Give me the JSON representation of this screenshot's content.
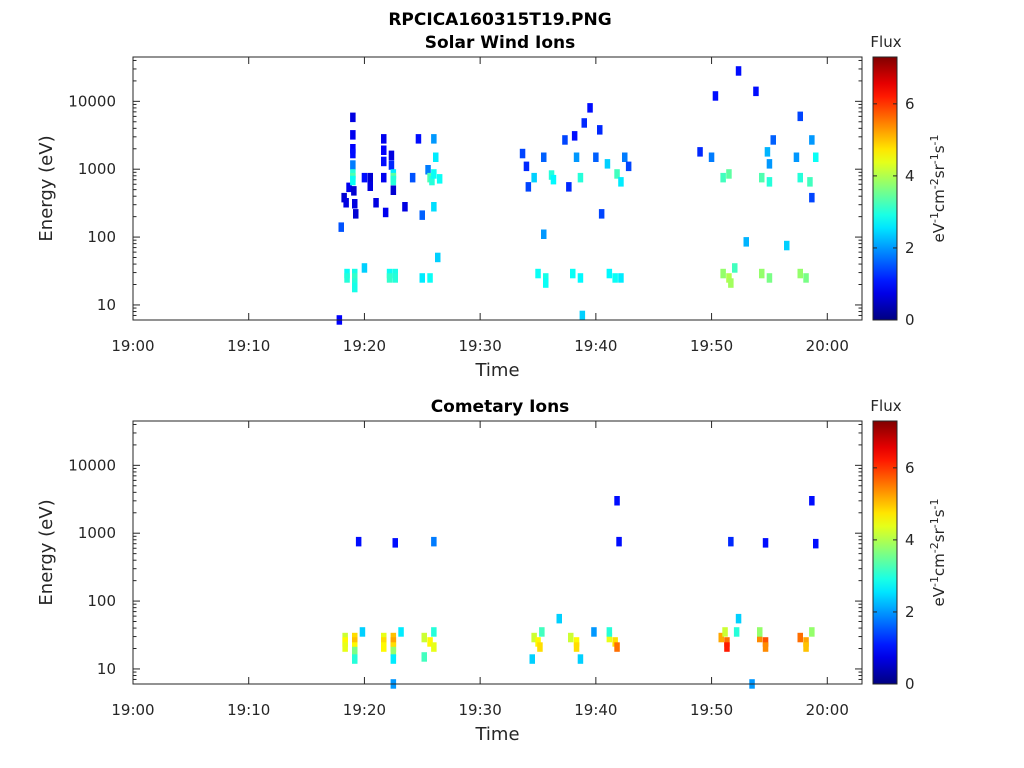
{
  "figure": {
    "main_title": "RPCICA160315T19.PNG"
  },
  "chart_data": [
    {
      "type": "heatmap",
      "title": "Solar Wind Ions",
      "xlabel": "Time",
      "ylabel": "Energy (eV)",
      "y_scale": "log",
      "ylim": [
        6,
        45000
      ],
      "xlim": [
        "19:00",
        "20:03"
      ],
      "x_ticks": [
        "19:00",
        "19:10",
        "19:20",
        "19:30",
        "19:40",
        "19:50",
        "20:00"
      ],
      "y_ticks": [
        "10",
        "100",
        "1000",
        "10000"
      ],
      "colorbar": {
        "title": "Flux",
        "label": "eV-1cm-2sr-1s-1",
        "ticks": [
          "0",
          "2",
          "4",
          "6"
        ],
        "range": [
          0,
          7.3
        ],
        "colormap": "jet"
      },
      "cells": [
        [
          "19:17:50",
          6,
          0.9
        ],
        [
          "19:18:00",
          140,
          1.5
        ],
        [
          "19:18:15",
          380,
          0.6
        ],
        [
          "19:18:25",
          320,
          0.7
        ],
        [
          "19:18:40",
          540,
          0.8
        ],
        [
          "19:19:00",
          5800,
          0.7
        ],
        [
          "19:19:00",
          3200,
          0.8
        ],
        [
          "19:19:00",
          2000,
          0.9
        ],
        [
          "19:19:00",
          1700,
          1.0
        ],
        [
          "19:19:00",
          1150,
          1.8
        ],
        [
          "19:19:00",
          850,
          3.0
        ],
        [
          "19:19:00",
          750,
          3.3
        ],
        [
          "19:19:00",
          680,
          2.8
        ],
        [
          "19:19:05",
          480,
          0.6
        ],
        [
          "19:19:10",
          310,
          0.7
        ],
        [
          "19:19:15",
          220,
          0.6
        ],
        [
          "19:18:30",
          29,
          2.8
        ],
        [
          "19:19:10",
          29,
          2.9
        ],
        [
          "19:18:30",
          25,
          3.0
        ],
        [
          "19:19:10",
          25,
          3.1
        ],
        [
          "19:19:10",
          21,
          3.0
        ],
        [
          "19:19:10",
          18,
          2.9
        ],
        [
          "19:20:00",
          750,
          1.0
        ],
        [
          "19:20:00",
          35,
          2.4
        ],
        [
          "19:20:30",
          750,
          0.6
        ],
        [
          "19:20:30",
          560,
          0.7
        ],
        [
          "19:21:00",
          320,
          0.7
        ],
        [
          "19:21:40",
          2800,
          0.8
        ],
        [
          "19:21:40",
          1900,
          0.9
        ],
        [
          "19:21:40",
          1300,
          1.0
        ],
        [
          "19:21:40",
          750,
          0.8
        ],
        [
          "19:21:50",
          230,
          0.8
        ],
        [
          "19:22:20",
          1600,
          0.7
        ],
        [
          "19:22:20",
          1150,
          1.2
        ],
        [
          "19:22:30",
          850,
          2.6
        ],
        [
          "19:22:30",
          750,
          3.4
        ],
        [
          "19:22:30",
          680,
          3.0
        ],
        [
          "19:22:30",
          490,
          0.6
        ],
        [
          "19:22:10",
          29,
          2.8
        ],
        [
          "19:22:40",
          29,
          2.9
        ],
        [
          "19:22:10",
          25,
          3.1
        ],
        [
          "19:22:40",
          25,
          3.0
        ],
        [
          "19:23:30",
          280,
          0.7
        ],
        [
          "19:24:10",
          750,
          1.5
        ],
        [
          "19:24:40",
          2800,
          1.0
        ],
        [
          "19:25:00",
          210,
          1.6
        ],
        [
          "19:25:30",
          980,
          1.8
        ],
        [
          "19:25:40",
          750,
          3.3
        ],
        [
          "19:25:50",
          680,
          3.0
        ],
        [
          "19:26:00",
          850,
          2.8
        ],
        [
          "19:26:10",
          1500,
          2.6
        ],
        [
          "19:26:30",
          720,
          2.8
        ],
        [
          "19:26:00",
          2800,
          2.0
        ],
        [
          "19:25:00",
          25,
          2.6
        ],
        [
          "19:25:40",
          25,
          2.8
        ],
        [
          "19:26:20",
          50,
          2.4
        ],
        [
          "19:26:00",
          280,
          2.5
        ],
        [
          "19:33:40",
          1700,
          1.4
        ],
        [
          "19:34:00",
          1100,
          1.2
        ],
        [
          "19:34:10",
          550,
          1.4
        ],
        [
          "19:34:40",
          750,
          2.4
        ],
        [
          "19:35:30",
          1500,
          1.6
        ],
        [
          "19:35:30",
          110,
          2.0
        ],
        [
          "19:35:00",
          29,
          2.8
        ],
        [
          "19:35:40",
          25,
          2.9
        ],
        [
          "19:35:40",
          21,
          2.8
        ],
        [
          "19:36:10",
          820,
          3.0
        ],
        [
          "19:36:20",
          700,
          2.7
        ],
        [
          "19:37:20",
          2700,
          1.4
        ],
        [
          "19:37:40",
          550,
          1.2
        ],
        [
          "19:38:10",
          3100,
          1.0
        ],
        [
          "19:38:20",
          1500,
          2.0
        ],
        [
          "19:38:40",
          750,
          3.0
        ],
        [
          "19:39:00",
          4800,
          1.2
        ],
        [
          "19:39:30",
          8000,
          1.0
        ],
        [
          "19:38:00",
          29,
          2.8
        ],
        [
          "19:38:40",
          25,
          2.7
        ],
        [
          "19:38:50",
          7,
          2.4
        ],
        [
          "19:40:00",
          1500,
          1.6
        ],
        [
          "19:40:20",
          3800,
          1.2
        ],
        [
          "19:40:30",
          220,
          1.4
        ],
        [
          "19:41:00",
          1200,
          2.4
        ],
        [
          "19:41:50",
          850,
          3.2
        ],
        [
          "19:42:10",
          650,
          2.6
        ],
        [
          "19:41:10",
          29,
          2.7
        ],
        [
          "19:41:40",
          25,
          2.8
        ],
        [
          "19:42:10",
          25,
          2.6
        ],
        [
          "19:42:30",
          1500,
          1.8
        ],
        [
          "19:42:50",
          1100,
          1.4
        ],
        [
          "19:49:00",
          1800,
          1.2
        ],
        [
          "19:50:00",
          1500,
          1.8
        ],
        [
          "19:50:20",
          12000,
          1.0
        ],
        [
          "19:51:00",
          750,
          3.2
        ],
        [
          "19:51:30",
          850,
          3.4
        ],
        [
          "19:52:20",
          28000,
          1.0
        ],
        [
          "19:51:00",
          29,
          3.8
        ],
        [
          "19:51:30",
          25,
          4.0
        ],
        [
          "19:51:40",
          21,
          3.9
        ],
        [
          "19:52:00",
          35,
          3.2
        ],
        [
          "19:53:00",
          85,
          2.2
        ],
        [
          "19:53:50",
          14000,
          1.0
        ],
        [
          "19:54:20",
          750,
          3.3
        ],
        [
          "19:54:50",
          1800,
          2.2
        ],
        [
          "19:55:00",
          1200,
          2.0
        ],
        [
          "19:55:00",
          650,
          3.0
        ],
        [
          "19:54:20",
          29,
          3.8
        ],
        [
          "19:55:00",
          25,
          3.6
        ],
        [
          "19:55:20",
          2700,
          1.6
        ],
        [
          "19:56:30",
          75,
          2.4
        ],
        [
          "19:57:20",
          1500,
          2.0
        ],
        [
          "19:57:40",
          6000,
          1.4
        ],
        [
          "19:57:40",
          750,
          3.0
        ],
        [
          "19:58:30",
          650,
          3.2
        ],
        [
          "19:58:40",
          2700,
          2.0
        ],
        [
          "19:59:00",
          1500,
          2.8
        ],
        [
          "19:58:40",
          380,
          1.4
        ],
        [
          "19:57:40",
          29,
          3.8
        ],
        [
          "19:58:10",
          25,
          3.6
        ]
      ]
    },
    {
      "type": "heatmap",
      "title": "Cometary Ions",
      "xlabel": "Time",
      "ylabel": "Energy (eV)",
      "y_scale": "log",
      "ylim": [
        6,
        45000
      ],
      "xlim": [
        "19:00",
        "20:03"
      ],
      "x_ticks": [
        "19:00",
        "19:10",
        "19:20",
        "19:30",
        "19:40",
        "19:50",
        "20:00"
      ],
      "y_ticks": [
        "10",
        "100",
        "1000",
        "10000"
      ],
      "colorbar": {
        "title": "Flux",
        "label": "eV-1cm-2sr-1s-1",
        "ticks": [
          "0",
          "2",
          "4",
          "6"
        ],
        "range": [
          0,
          7.3
        ],
        "colormap": "jet"
      },
      "cells": [
        [
          "19:19:30",
          750,
          1.0
        ],
        [
          "19:22:40",
          720,
          1.0
        ],
        [
          "19:26:00",
          750,
          1.8
        ],
        [
          "19:41:50",
          3000,
          1.0
        ],
        [
          "19:42:00",
          750,
          1.0
        ],
        [
          "19:51:40",
          750,
          1.2
        ],
        [
          "19:54:40",
          720,
          1.0
        ],
        [
          "19:58:40",
          3000,
          1.0
        ],
        [
          "19:59:00",
          700,
          1.0
        ],
        [
          "19:18:20",
          29,
          4.2
        ],
        [
          "19:18:20",
          25,
          4.6
        ],
        [
          "19:18:20",
          21,
          4.4
        ],
        [
          "19:19:10",
          29,
          4.8
        ],
        [
          "19:19:10",
          25,
          5.0
        ],
        [
          "19:19:10",
          21,
          4.6
        ],
        [
          "19:19:10",
          18,
          3.6
        ],
        [
          "19:19:10",
          14,
          3.0
        ],
        [
          "19:19:50",
          35,
          2.4
        ],
        [
          "19:21:40",
          29,
          4.4
        ],
        [
          "19:21:40",
          25,
          4.8
        ],
        [
          "19:21:40",
          21,
          4.6
        ],
        [
          "19:22:30",
          29,
          5.0
        ],
        [
          "19:22:30",
          25,
          5.2
        ],
        [
          "19:22:30",
          21,
          4.8
        ],
        [
          "19:22:30",
          18,
          3.8
        ],
        [
          "19:22:30",
          14,
          2.6
        ],
        [
          "19:23:10",
          35,
          2.6
        ],
        [
          "19:22:30",
          6,
          2.0
        ],
        [
          "19:25:10",
          29,
          4.2
        ],
        [
          "19:25:40",
          25,
          4.6
        ],
        [
          "19:26:00",
          21,
          4.4
        ],
        [
          "19:25:10",
          15,
          3.2
        ],
        [
          "19:26:00",
          35,
          3.0
        ],
        [
          "19:34:40",
          29,
          4.2
        ],
        [
          "19:35:00",
          25,
          4.6
        ],
        [
          "19:35:10",
          21,
          4.8
        ],
        [
          "19:34:30",
          14,
          2.4
        ],
        [
          "19:35:20",
          35,
          3.2
        ],
        [
          "19:36:50",
          55,
          2.4
        ],
        [
          "19:37:50",
          29,
          4.2
        ],
        [
          "19:38:20",
          25,
          4.6
        ],
        [
          "19:38:20",
          21,
          4.8
        ],
        [
          "19:38:40",
          14,
          2.4
        ],
        [
          "19:39:50",
          35,
          2.0
        ],
        [
          "19:41:10",
          29,
          4.4
        ],
        [
          "19:41:40",
          25,
          4.8
        ],
        [
          "19:41:50",
          21,
          5.6
        ],
        [
          "19:41:10",
          35,
          3.0
        ],
        [
          "19:50:50",
          29,
          5.2
        ],
        [
          "19:51:20",
          25,
          5.6
        ],
        [
          "19:51:20",
          21,
          6.2
        ],
        [
          "19:51:10",
          35,
          4.2
        ],
        [
          "19:52:10",
          35,
          3.0
        ],
        [
          "19:52:20",
          55,
          2.4
        ],
        [
          "19:53:30",
          6,
          2.0
        ],
        [
          "19:54:10",
          29,
          5.4
        ],
        [
          "19:54:40",
          25,
          5.8
        ],
        [
          "19:54:40",
          21,
          5.4
        ],
        [
          "19:54:10",
          35,
          3.8
        ],
        [
          "19:57:40",
          29,
          5.6
        ],
        [
          "19:58:10",
          25,
          5.2
        ],
        [
          "19:58:10",
          21,
          5.0
        ],
        [
          "19:58:40",
          35,
          3.8
        ]
      ]
    }
  ]
}
